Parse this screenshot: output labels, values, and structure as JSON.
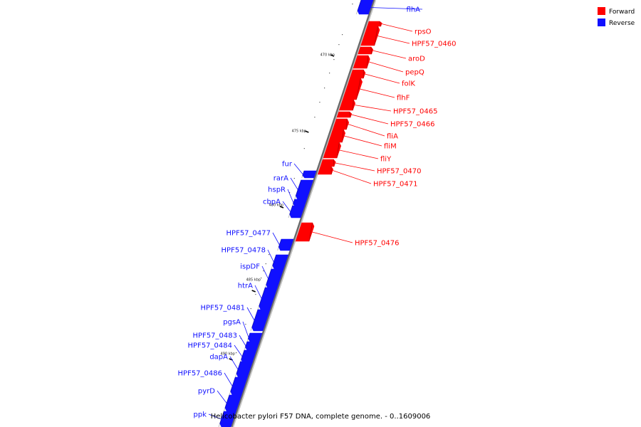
{
  "colors": {
    "forward": "#ff0000",
    "reverse": "#1010ff",
    "backbone": "#888888",
    "ink": "#000000"
  },
  "legend": {
    "forward_label": "Forward",
    "reverse_label": "Reverse"
  },
  "caption": "Helicobacter pylori F57 DNA, complete genome. - 0..1609006",
  "ticks": [
    "470 kbp",
    "475 kbp",
    "480 kbp",
    "485 kbp",
    "490 kbp"
  ],
  "genes": [
    {
      "name": "flhA",
      "strand": "reverse"
    },
    {
      "name": "rpsO",
      "strand": "forward"
    },
    {
      "name": "HPF57_0460",
      "strand": "forward"
    },
    {
      "name": "aroD",
      "strand": "forward"
    },
    {
      "name": "pepQ",
      "strand": "forward"
    },
    {
      "name": "folK",
      "strand": "forward"
    },
    {
      "name": "flhF",
      "strand": "forward"
    },
    {
      "name": "HPF57_0465",
      "strand": "forward"
    },
    {
      "name": "HPF57_0466",
      "strand": "forward"
    },
    {
      "name": "fliA",
      "strand": "forward"
    },
    {
      "name": "fliM",
      "strand": "forward"
    },
    {
      "name": "fliY",
      "strand": "forward"
    },
    {
      "name": "HPF57_0470",
      "strand": "forward"
    },
    {
      "name": "HPF57_0471",
      "strand": "forward"
    },
    {
      "name": "fur",
      "strand": "reverse"
    },
    {
      "name": "rarA",
      "strand": "reverse"
    },
    {
      "name": "hspR",
      "strand": "reverse"
    },
    {
      "name": "cbpA",
      "strand": "reverse"
    },
    {
      "name": "HPF57_0476",
      "strand": "forward"
    },
    {
      "name": "HPF57_0477",
      "strand": "reverse"
    },
    {
      "name": "HPF57_0478",
      "strand": "reverse"
    },
    {
      "name": "ispDF",
      "strand": "reverse"
    },
    {
      "name": "htrA",
      "strand": "reverse"
    },
    {
      "name": "HPF57_0481",
      "strand": "reverse"
    },
    {
      "name": "pgsA",
      "strand": "reverse"
    },
    {
      "name": "HPF57_0483",
      "strand": "reverse"
    },
    {
      "name": "HPF57_0484",
      "strand": "reverse"
    },
    {
      "name": "dapA",
      "strand": "reverse"
    },
    {
      "name": "HPF57_0486",
      "strand": "reverse"
    },
    {
      "name": "pyrD",
      "strand": "reverse"
    },
    {
      "name": "ppk",
      "strand": "reverse"
    }
  ]
}
